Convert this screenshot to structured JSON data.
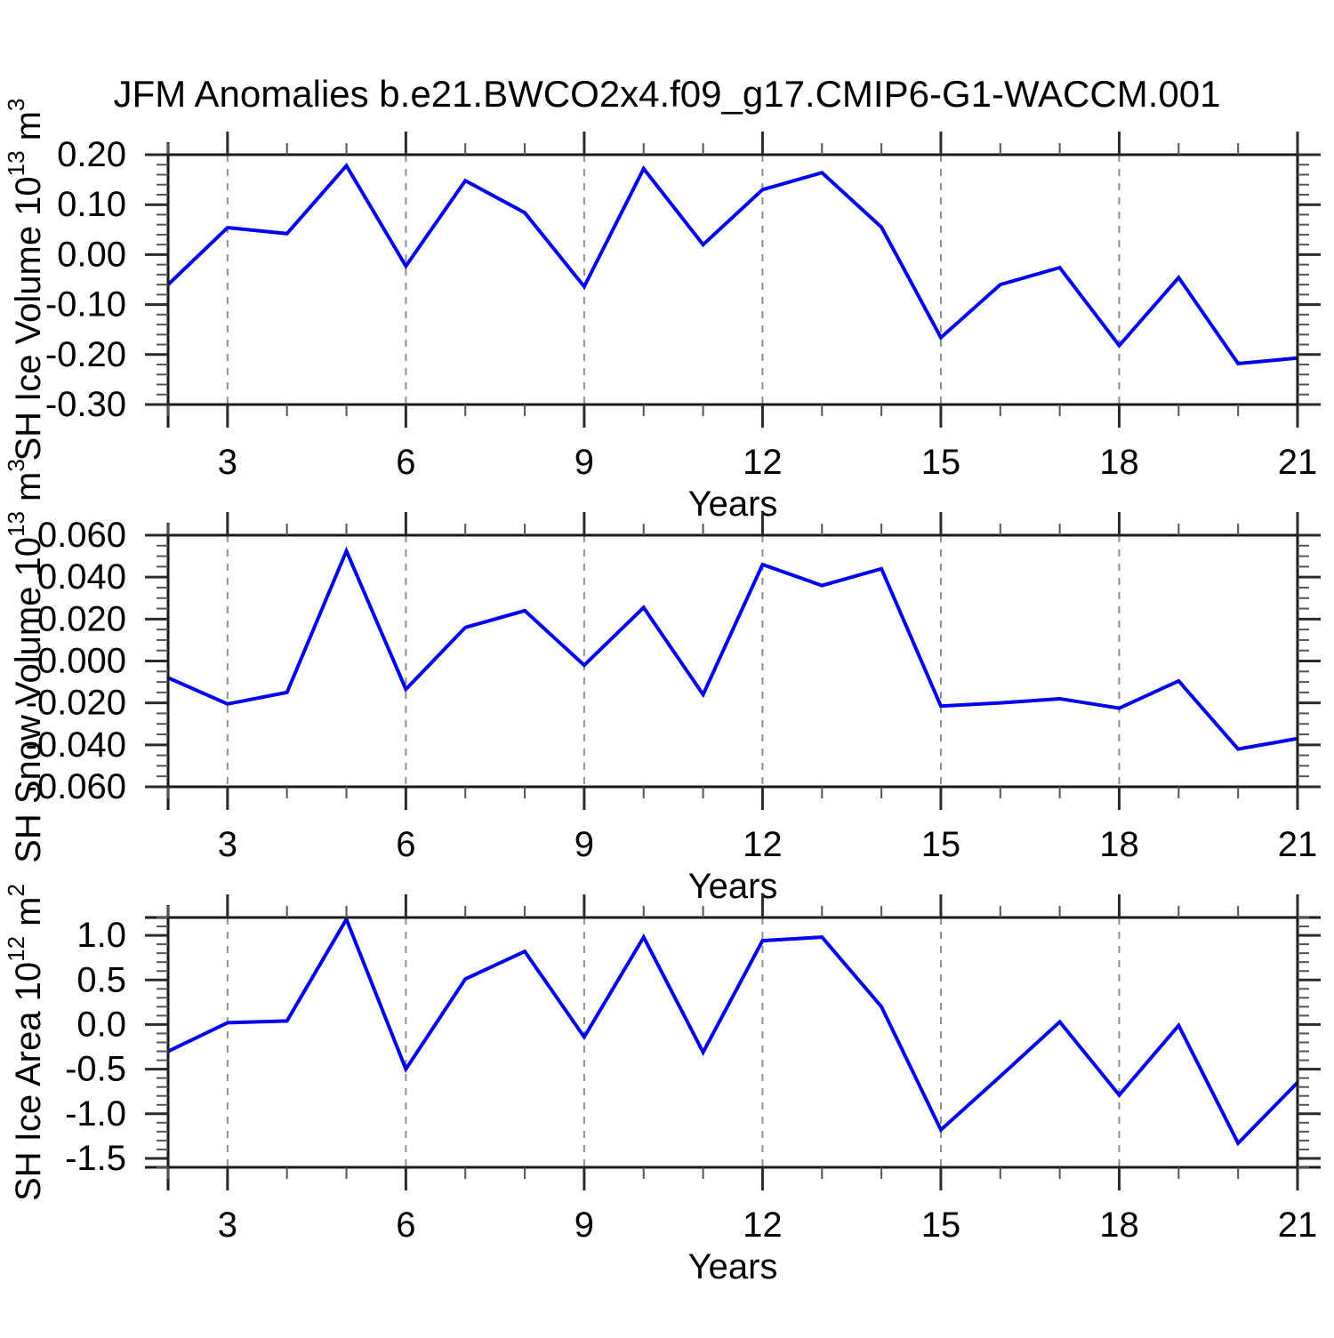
{
  "title": "JFM Anomalies b.e21.BWCO2x4.f09_g17.CMIP6-G1-WACCM.001",
  "colors": {
    "line": "#0000f0",
    "gridline": "#909090",
    "frame": "#1a1a1a",
    "tick_major": "#2a2a2a",
    "tick_minor": "#555555",
    "text": "#000000"
  },
  "x_axis": {
    "label": "Years",
    "range": [
      2,
      21
    ],
    "major_ticks": [
      3,
      6,
      9,
      12,
      15,
      18,
      21
    ],
    "major_tick_labels": [
      "3",
      "6",
      "9",
      "12",
      "15",
      "18",
      "21"
    ],
    "minor_tick_step": 1,
    "gridline_years": [
      3,
      6,
      9,
      12,
      15,
      18
    ]
  },
  "years": [
    2,
    3,
    4,
    5,
    6,
    7,
    8,
    9,
    10,
    11,
    12,
    13,
    14,
    15,
    16,
    17,
    18,
    19,
    20,
    21
  ],
  "chart_data": [
    {
      "type": "line",
      "name": "sh-ice-volume",
      "ylabel_text": "SH Ice Volume 10^13 m^3",
      "ylabel_segments": [
        [
          "SH Ice Volume 10",
          0
        ],
        [
          "13",
          1
        ],
        [
          " m",
          0
        ],
        [
          "3",
          1
        ]
      ],
      "ylim": [
        -0.3,
        0.2
      ],
      "ymajor_step": 0.1,
      "yminor_step": 0.02,
      "ytick_values": [
        0.2,
        0.1,
        0.0,
        -0.1,
        -0.2,
        -0.3
      ],
      "ytick_labels": [
        "0.20",
        "0.10",
        "0.00",
        "-0.10",
        "-0.20",
        "-0.30"
      ],
      "values": [
        -0.06,
        0.054,
        0.042,
        0.178,
        -0.023,
        0.148,
        0.084,
        -0.064,
        0.172,
        0.02,
        0.13,
        0.164,
        0.055,
        -0.166,
        -0.06,
        -0.026,
        -0.182,
        -0.046,
        -0.218,
        -0.207
      ]
    },
    {
      "type": "line",
      "name": "sh-snow-volume",
      "ylabel_text": "SH Snow Volume 10^13 m^3",
      "ylabel_segments": [
        [
          "SH Snow Volume 10",
          0
        ],
        [
          "13",
          1
        ],
        [
          " m",
          0
        ],
        [
          "3",
          1
        ]
      ],
      "ylim": [
        -0.06,
        0.06
      ],
      "ymajor_step": 0.02,
      "yminor_step": 0.005,
      "ytick_values": [
        0.06,
        0.04,
        0.02,
        0.0,
        -0.02,
        -0.04,
        -0.06
      ],
      "ytick_labels": [
        "0.060",
        "0.040",
        "0.020",
        "0.000",
        "-0.020",
        "-0.040",
        "-0.060"
      ],
      "values": [
        -0.008,
        -0.0205,
        -0.015,
        0.0525,
        -0.0135,
        0.016,
        0.024,
        -0.002,
        0.0255,
        -0.016,
        0.046,
        0.036,
        0.044,
        -0.0215,
        -0.02,
        -0.018,
        -0.0225,
        -0.0095,
        -0.042,
        -0.037
      ]
    },
    {
      "type": "line",
      "name": "sh-ice-area",
      "ylabel_text": "SH Ice Area 10^12 m^2",
      "ylabel_segments": [
        [
          "SH Ice Area 10",
          0
        ],
        [
          "12",
          1
        ],
        [
          " m",
          0
        ],
        [
          "2",
          1
        ]
      ],
      "ylim": [
        -1.6,
        1.2
      ],
      "ymajor_step": 0.5,
      "yminor_step": 0.1,
      "ytick_values": [
        1.0,
        0.5,
        0.0,
        -0.5,
        -1.0,
        -1.5
      ],
      "ytick_labels": [
        "1.0",
        "0.5",
        "0.0",
        "-0.5",
        "-1.0",
        "-1.5"
      ],
      "values": [
        -0.3,
        0.02,
        0.04,
        1.18,
        -0.5,
        0.51,
        0.82,
        -0.14,
        0.98,
        -0.31,
        0.94,
        0.98,
        0.2,
        -1.18,
        -0.58,
        0.03,
        -0.79,
        -0.01,
        -1.33,
        -0.65
      ]
    }
  ]
}
